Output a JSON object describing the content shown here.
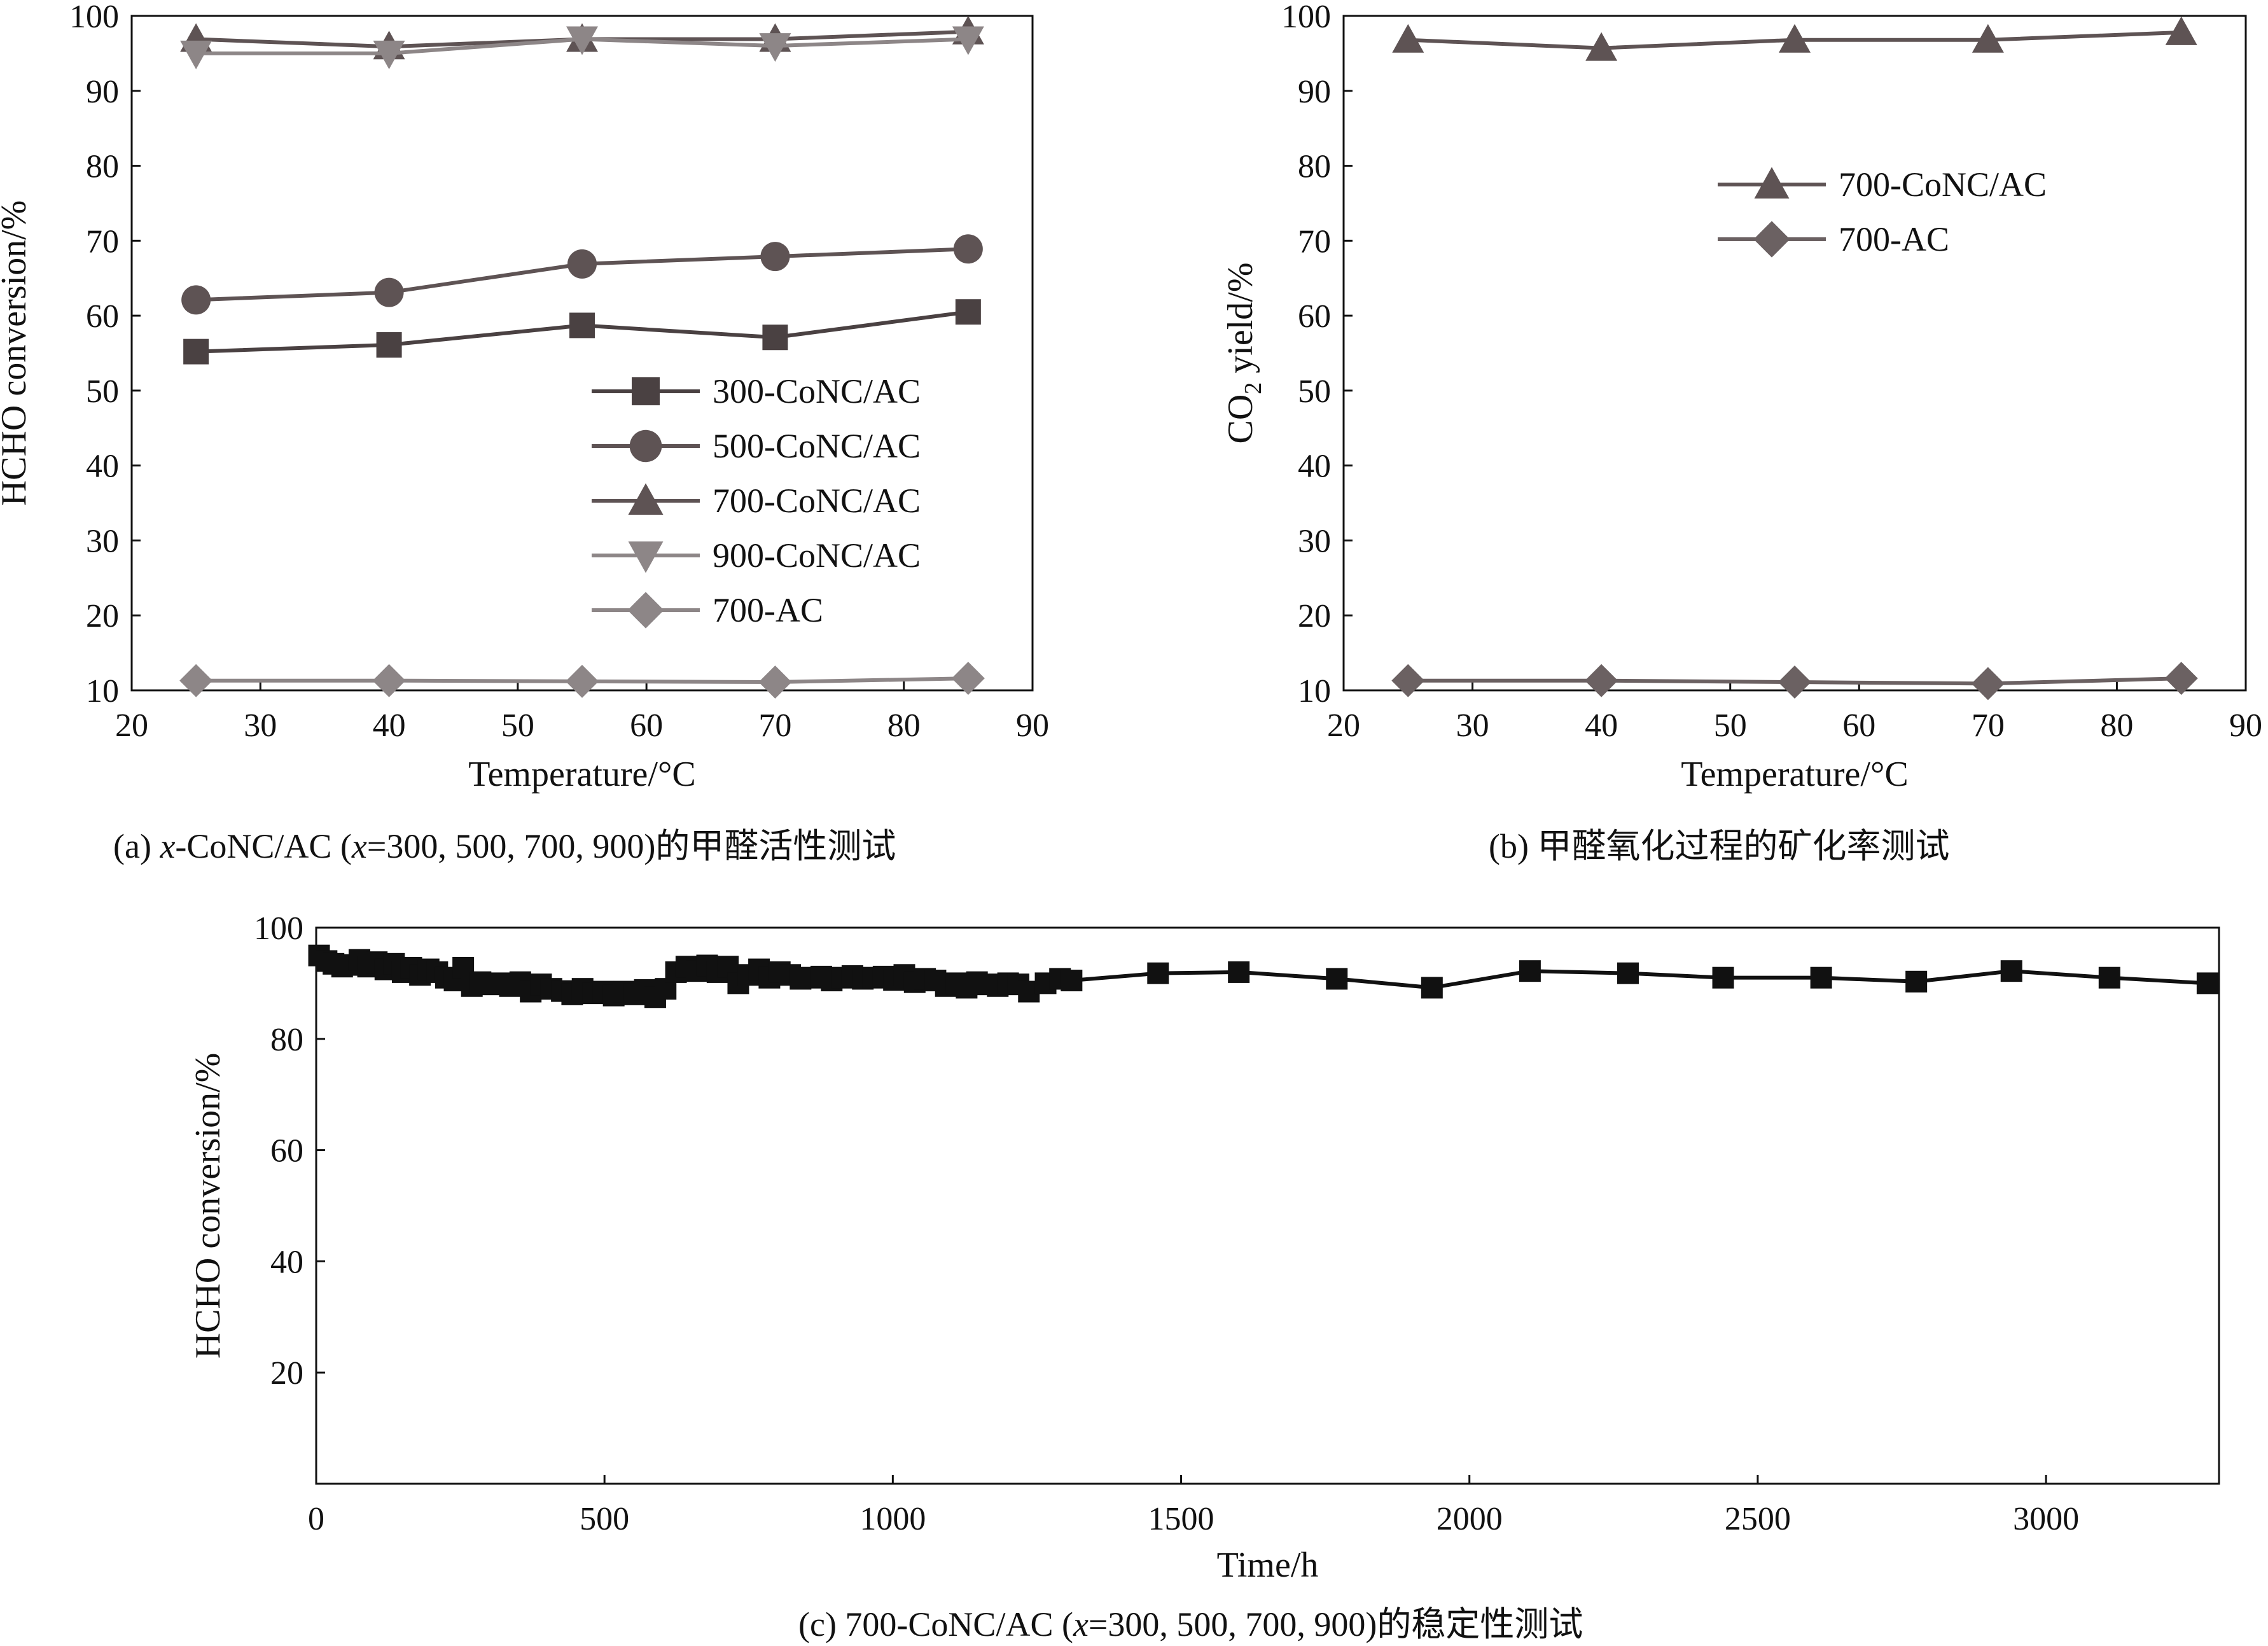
{
  "chart_data": [
    {
      "id": "a",
      "type": "line",
      "xlabel": "Temperature/°C",
      "ylabel": "HCHO conversion/%",
      "xlim": [
        20,
        90
      ],
      "ylim": [
        10,
        100
      ],
      "xticks": [
        20,
        30,
        40,
        50,
        60,
        70,
        80,
        90
      ],
      "yticks": [
        10,
        20,
        30,
        40,
        50,
        60,
        70,
        80,
        90,
        100
      ],
      "legend_position": "lower-right",
      "x": [
        25,
        40,
        55,
        70,
        85
      ],
      "series": [
        {
          "name": "300-CoNC/AC",
          "marker": "square",
          "color": "#4a4142",
          "values": [
            55.2,
            56.1,
            58.7,
            57.1,
            60.5
          ]
        },
        {
          "name": "500-CoNC/AC",
          "marker": "circle",
          "color": "#5e5354",
          "values": [
            62.1,
            63.1,
            66.9,
            67.9,
            68.9
          ]
        },
        {
          "name": "700-CoNC/AC",
          "marker": "triangle-up",
          "color": "#5e5354",
          "values": [
            96.9,
            95.9,
            96.9,
            96.9,
            97.9
          ]
        },
        {
          "name": "900-CoNC/AC",
          "marker": "triangle-down",
          "color": "#8d8687",
          "values": [
            95.0,
            95.0,
            96.9,
            96.0,
            96.9
          ]
        },
        {
          "name": "700-AC",
          "marker": "diamond",
          "color": "#8d8687",
          "values": [
            11.3,
            11.3,
            11.2,
            11.1,
            11.6
          ]
        }
      ],
      "caption_prefix": "(a) ",
      "caption_italic_x": "x",
      "caption_mid": "-CoNC/AC (",
      "caption_italic_x2": "x",
      "caption_suffix": "=300, 500, 700, 900)的甲醛活性测试"
    },
    {
      "id": "b",
      "type": "line",
      "xlabel": "Temperature/°C",
      "ylabel_main": "CO",
      "ylabel_sub": "2",
      "ylabel_rest": " yield/%",
      "xlim": [
        20,
        90
      ],
      "ylim": [
        10,
        100
      ],
      "xticks": [
        20,
        30,
        40,
        50,
        60,
        70,
        80,
        90
      ],
      "yticks": [
        10,
        20,
        30,
        40,
        50,
        60,
        70,
        80,
        90,
        100
      ],
      "legend_position": "upper-right",
      "x": [
        25,
        40,
        55,
        70,
        85
      ],
      "series": [
        {
          "name": "700-CoNC/AC",
          "marker": "triangle-up",
          "color": "#5e5354",
          "values": [
            96.8,
            95.7,
            96.8,
            96.8,
            97.8
          ]
        },
        {
          "name": "700-AC",
          "marker": "diamond",
          "color": "#6b6162",
          "values": [
            11.3,
            11.3,
            11.1,
            10.9,
            11.6
          ]
        }
      ],
      "caption": "(b) 甲醛氧化过程的矿化率测试"
    },
    {
      "id": "c",
      "type": "line",
      "xlabel": "Time/h",
      "ylabel": "HCHO conversion/%",
      "xlim": [
        0,
        3300
      ],
      "ylim": [
        0,
        100
      ],
      "xticks": [
        0,
        500,
        1000,
        1500,
        2000,
        2500,
        3000
      ],
      "yticks": [
        20,
        40,
        60,
        80,
        100
      ],
      "series": [
        {
          "name": "700-CoNC/AC",
          "marker": "square",
          "color": "#111111",
          "x": [
            5,
            18,
            30,
            45,
            60,
            75,
            90,
            105,
            120,
            135,
            150,
            165,
            180,
            195,
            210,
            225,
            240,
            255,
            270,
            285,
            300,
            318,
            336,
            354,
            372,
            390,
            408,
            426,
            444,
            462,
            480,
            498,
            516,
            534,
            552,
            570,
            588,
            606,
            624,
            642,
            660,
            678,
            696,
            714,
            732,
            750,
            768,
            786,
            804,
            822,
            840,
            858,
            876,
            894,
            912,
            930,
            948,
            966,
            984,
            1002,
            1020,
            1038,
            1056,
            1074,
            1092,
            1110,
            1128,
            1146,
            1164,
            1182,
            1200,
            1218,
            1236,
            1265,
            1290,
            1310,
            1460,
            1600,
            1770,
            1935,
            2105,
            2275,
            2440,
            2610,
            2775,
            2940,
            3110,
            3280
          ],
          "values": [
            95.0,
            94.0,
            93.5,
            93.0,
            93.3,
            94.2,
            93.0,
            93.8,
            92.5,
            93.5,
            92.0,
            92.8,
            91.5,
            92.5,
            92.0,
            91.0,
            90.5,
            92.8,
            89.5,
            90.2,
            89.8,
            90.0,
            89.5,
            90.2,
            88.5,
            89.8,
            89.0,
            88.6,
            88.0,
            89.0,
            88.2,
            88.5,
            87.8,
            88.5,
            88.0,
            88.8,
            87.5,
            89.0,
            92.0,
            93.0,
            92.2,
            93.2,
            92.0,
            93.0,
            90.0,
            91.5,
            92.5,
            91.0,
            92.0,
            91.5,
            90.8,
            91.0,
            91.2,
            90.5,
            91.0,
            91.3,
            90.8,
            91.0,
            91.2,
            90.6,
            91.5,
            90.2,
            90.8,
            90.5,
            89.5,
            90.0,
            89.2,
            90.2,
            89.8,
            89.5,
            90.0,
            89.8,
            88.5,
            90.0,
            90.8,
            90.5,
            91.8,
            92.0,
            90.8,
            89.2,
            92.2,
            91.8,
            91.0,
            91.0,
            90.3,
            92.2,
            91.0,
            90.0
          ]
        }
      ],
      "caption_prefix": "(c) 700-CoNC/AC (",
      "caption_italic_x": "x",
      "caption_suffix": "=300, 500, 700, 900)的稳定性测试"
    }
  ]
}
